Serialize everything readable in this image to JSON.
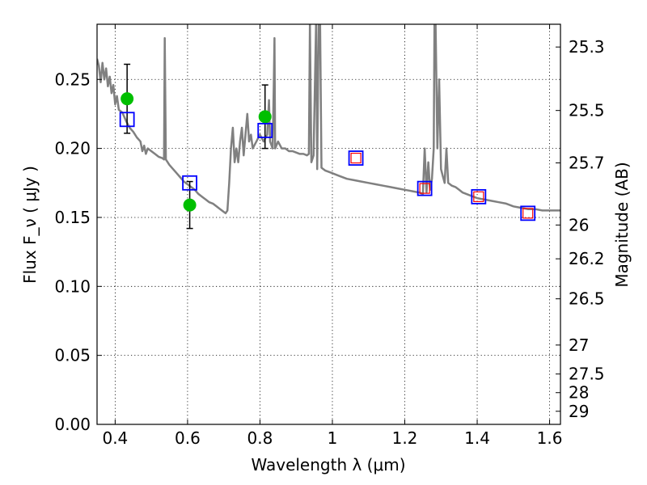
{
  "chart_data": {
    "type": "scatter",
    "xlabel": "Wavelength  λ (μm)",
    "ylabel": "Flux  F_ν  ( μJy )",
    "ylabel_right": "Magnitude (AB)",
    "xlim": [
      0.35,
      1.63
    ],
    "ylim": [
      0.0,
      0.29
    ],
    "grid": true,
    "legend": "none",
    "x_ticks": [
      0.4,
      0.6,
      0.8,
      1.0,
      1.2,
      1.4,
      1.6
    ],
    "x_tick_labels": [
      "0.4",
      "0.6",
      "0.8",
      "1",
      "1.2",
      "1.4",
      "1.6"
    ],
    "y_ticks": [
      0.0,
      0.05,
      0.1,
      0.15,
      0.2,
      0.25
    ],
    "y_tick_labels": [
      "0.00",
      "0.05",
      "0.10",
      "0.15",
      "0.20",
      "0.25"
    ],
    "right_ticks": [
      {
        "label": "25.3",
        "flux": 0.2735
      },
      {
        "label": "25.5",
        "flux": 0.2275
      },
      {
        "label": "25.7",
        "flux": 0.1895
      },
      {
        "label": "26",
        "flux": 0.1445
      },
      {
        "label": "26.2",
        "flux": 0.12
      },
      {
        "label": "26.5",
        "flux": 0.091
      },
      {
        "label": "27",
        "flux": 0.0575
      },
      {
        "label": "27.5",
        "flux": 0.0365
      },
      {
        "label": "28",
        "flux": 0.023
      },
      {
        "label": "29",
        "flux": 0.0095
      }
    ],
    "series": [
      {
        "type": "line",
        "color": "#808080",
        "points": [
          [
            0.35,
            0.265
          ],
          [
            0.355,
            0.26
          ],
          [
            0.36,
            0.248
          ],
          [
            0.365,
            0.262
          ],
          [
            0.37,
            0.25
          ],
          [
            0.375,
            0.258
          ],
          [
            0.38,
            0.245
          ],
          [
            0.385,
            0.252
          ],
          [
            0.39,
            0.24
          ],
          [
            0.395,
            0.246
          ],
          [
            0.4,
            0.232
          ],
          [
            0.405,
            0.238
          ],
          [
            0.41,
            0.228
          ],
          [
            0.42,
            0.226
          ],
          [
            0.43,
            0.22
          ],
          [
            0.44,
            0.215
          ],
          [
            0.45,
            0.212
          ],
          [
            0.46,
            0.208
          ],
          [
            0.47,
            0.205
          ],
          [
            0.475,
            0.198
          ],
          [
            0.48,
            0.202
          ],
          [
            0.485,
            0.196
          ],
          [
            0.49,
            0.2
          ],
          [
            0.5,
            0.198
          ],
          [
            0.51,
            0.196
          ],
          [
            0.52,
            0.194
          ],
          [
            0.53,
            0.193
          ],
          [
            0.535,
            0.192
          ],
          [
            0.537,
            0.28
          ],
          [
            0.54,
            0.192
          ],
          [
            0.55,
            0.188
          ],
          [
            0.56,
            0.185
          ],
          [
            0.57,
            0.182
          ],
          [
            0.58,
            0.179
          ],
          [
            0.59,
            0.176
          ],
          [
            0.6,
            0.174
          ],
          [
            0.61,
            0.172
          ],
          [
            0.62,
            0.17
          ],
          [
            0.63,
            0.167
          ],
          [
            0.64,
            0.165
          ],
          [
            0.65,
            0.163
          ],
          [
            0.66,
            0.161
          ],
          [
            0.67,
            0.16
          ],
          [
            0.68,
            0.158
          ],
          [
            0.69,
            0.156
          ],
          [
            0.7,
            0.154
          ],
          [
            0.705,
            0.153
          ],
          [
            0.71,
            0.155
          ],
          [
            0.715,
            0.175
          ],
          [
            0.72,
            0.2
          ],
          [
            0.725,
            0.215
          ],
          [
            0.73,
            0.19
          ],
          [
            0.735,
            0.2
          ],
          [
            0.74,
            0.19
          ],
          [
            0.745,
            0.205
          ],
          [
            0.75,
            0.215
          ],
          [
            0.755,
            0.195
          ],
          [
            0.76,
            0.21
          ],
          [
            0.765,
            0.225
          ],
          [
            0.77,
            0.205
          ],
          [
            0.775,
            0.21
          ],
          [
            0.78,
            0.2
          ],
          [
            0.79,
            0.205
          ],
          [
            0.8,
            0.21
          ],
          [
            0.81,
            0.205
          ],
          [
            0.82,
            0.21
          ],
          [
            0.825,
            0.235
          ],
          [
            0.828,
            0.205
          ],
          [
            0.835,
            0.2
          ],
          [
            0.838,
            0.245
          ],
          [
            0.84,
            0.28
          ],
          [
            0.842,
            0.2
          ],
          [
            0.85,
            0.205
          ],
          [
            0.86,
            0.2
          ],
          [
            0.87,
            0.2
          ],
          [
            0.88,
            0.198
          ],
          [
            0.89,
            0.198
          ],
          [
            0.9,
            0.197
          ],
          [
            0.91,
            0.196
          ],
          [
            0.92,
            0.196
          ],
          [
            0.93,
            0.195
          ],
          [
            0.935,
            0.196
          ],
          [
            0.938,
            0.29
          ],
          [
            0.942,
            0.19
          ],
          [
            0.948,
            0.195
          ],
          [
            0.955,
            0.29
          ],
          [
            0.958,
            0.185
          ],
          [
            0.962,
            0.29
          ],
          [
            0.966,
            0.29
          ],
          [
            0.97,
            0.186
          ],
          [
            0.975,
            0.185
          ],
          [
            0.98,
            0.184
          ],
          [
            0.99,
            0.183
          ],
          [
            1.0,
            0.182
          ],
          [
            1.02,
            0.18
          ],
          [
            1.04,
            0.178
          ],
          [
            1.06,
            0.177
          ],
          [
            1.08,
            0.176
          ],
          [
            1.1,
            0.175
          ],
          [
            1.12,
            0.174
          ],
          [
            1.14,
            0.173
          ],
          [
            1.16,
            0.172
          ],
          [
            1.18,
            0.171
          ],
          [
            1.2,
            0.17
          ],
          [
            1.22,
            0.169
          ],
          [
            1.24,
            0.168
          ],
          [
            1.25,
            0.167
          ],
          [
            1.255,
            0.2
          ],
          [
            1.26,
            0.168
          ],
          [
            1.265,
            0.19
          ],
          [
            1.27,
            0.17
          ],
          [
            1.275,
            0.178
          ],
          [
            1.28,
            0.2
          ],
          [
            1.282,
            0.29
          ],
          [
            1.285,
            0.29
          ],
          [
            1.29,
            0.2
          ],
          [
            1.295,
            0.25
          ],
          [
            1.3,
            0.185
          ],
          [
            1.305,
            0.18
          ],
          [
            1.31,
            0.175
          ],
          [
            1.315,
            0.2
          ],
          [
            1.32,
            0.175
          ],
          [
            1.33,
            0.173
          ],
          [
            1.34,
            0.172
          ],
          [
            1.35,
            0.17
          ],
          [
            1.36,
            0.168
          ],
          [
            1.37,
            0.167
          ],
          [
            1.38,
            0.166
          ],
          [
            1.39,
            0.165
          ],
          [
            1.4,
            0.164
          ],
          [
            1.42,
            0.163
          ],
          [
            1.44,
            0.162
          ],
          [
            1.46,
            0.161
          ],
          [
            1.48,
            0.16
          ],
          [
            1.5,
            0.158
          ],
          [
            1.52,
            0.157
          ],
          [
            1.54,
            0.156
          ],
          [
            1.56,
            0.156
          ],
          [
            1.58,
            0.155
          ],
          [
            1.6,
            0.155
          ],
          [
            1.63,
            0.155
          ]
        ]
      },
      {
        "type": "scatter",
        "marker": "circle",
        "color": "#00bf00",
        "points": [
          {
            "x": 0.433,
            "y": 0.236,
            "yerr": 0.025
          },
          {
            "x": 0.606,
            "y": 0.159,
            "yerr": 0.017
          },
          {
            "x": 0.814,
            "y": 0.223,
            "yerr": 0.023
          }
        ]
      },
      {
        "type": "scatter",
        "marker": "square-open",
        "color": "#0000ff",
        "points": [
          [
            0.433,
            0.221
          ],
          [
            0.606,
            0.175
          ],
          [
            0.814,
            0.213
          ],
          [
            1.065,
            0.193
          ],
          [
            1.255,
            0.171
          ],
          [
            1.404,
            0.165
          ],
          [
            1.54,
            0.153
          ]
        ]
      },
      {
        "type": "scatter",
        "marker": "square-open-small",
        "color": "#ff0000",
        "points": [
          [
            1.065,
            0.193
          ],
          [
            1.255,
            0.171
          ],
          [
            1.404,
            0.165
          ],
          [
            1.54,
            0.153
          ]
        ]
      }
    ]
  }
}
